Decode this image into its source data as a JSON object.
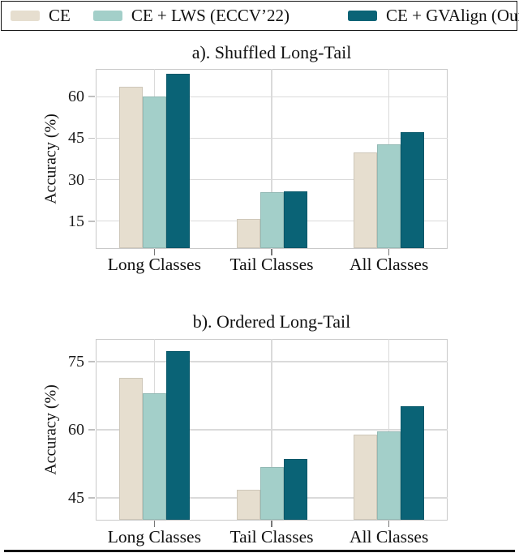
{
  "legend": {
    "entries": [
      {
        "label": "CE",
        "color": "#E6DECF"
      },
      {
        "label": "CE + LWS (ECCV’22)",
        "color": "#A3CFC9"
      },
      {
        "label": "CE + GVAlign (Ours)",
        "color": "#0A6376"
      }
    ]
  },
  "colors": {
    "ce": "#E6DECF",
    "ce_lws": "#A3CFC9",
    "ce_gvalign": "#0A6376",
    "gridline": "#dadada",
    "spine": "#c9c9c9"
  },
  "chart_data": [
    {
      "type": "bar",
      "title": "a). Shuffled Long-Tail",
      "ylabel": "Accuracy (%)",
      "xlabel": "",
      "categories": [
        "Long Classes",
        "Tail Classes",
        "All Classes"
      ],
      "series": [
        {
          "name": "CE",
          "color": "#E6DECF",
          "values": [
            63.5,
            15.8,
            39.8
          ]
        },
        {
          "name": "CE + LWS (ECCV’22)",
          "color": "#A3CFC9",
          "values": [
            60.0,
            25.5,
            42.9
          ]
        },
        {
          "name": "CE + GVAlign (Ours)",
          "color": "#0A6376",
          "values": [
            68.2,
            25.8,
            47.2
          ]
        }
      ],
      "yticks": [
        15,
        30,
        45,
        60
      ],
      "ylim": [
        5,
        70
      ],
      "grid": true,
      "legend_position": "top-outside-shared"
    },
    {
      "type": "bar",
      "title": "b). Ordered Long-Tail",
      "ylabel": "Accuracy (%)",
      "xlabel": "",
      "categories": [
        "Long Classes",
        "Tail Classes",
        "All Classes"
      ],
      "series": [
        {
          "name": "CE",
          "color": "#E6DECF",
          "values": [
            71.4,
            46.7,
            58.9
          ]
        },
        {
          "name": "CE + LWS (ECCV’22)",
          "color": "#A3CFC9",
          "values": [
            68.1,
            51.7,
            59.6
          ]
        },
        {
          "name": "CE + GVAlign (Ours)",
          "color": "#0A6376",
          "values": [
            77.4,
            53.5,
            65.2
          ]
        }
      ],
      "yticks": [
        45,
        60,
        75
      ],
      "ylim": [
        40,
        80
      ],
      "grid": true,
      "legend_position": "top-outside-shared"
    }
  ]
}
